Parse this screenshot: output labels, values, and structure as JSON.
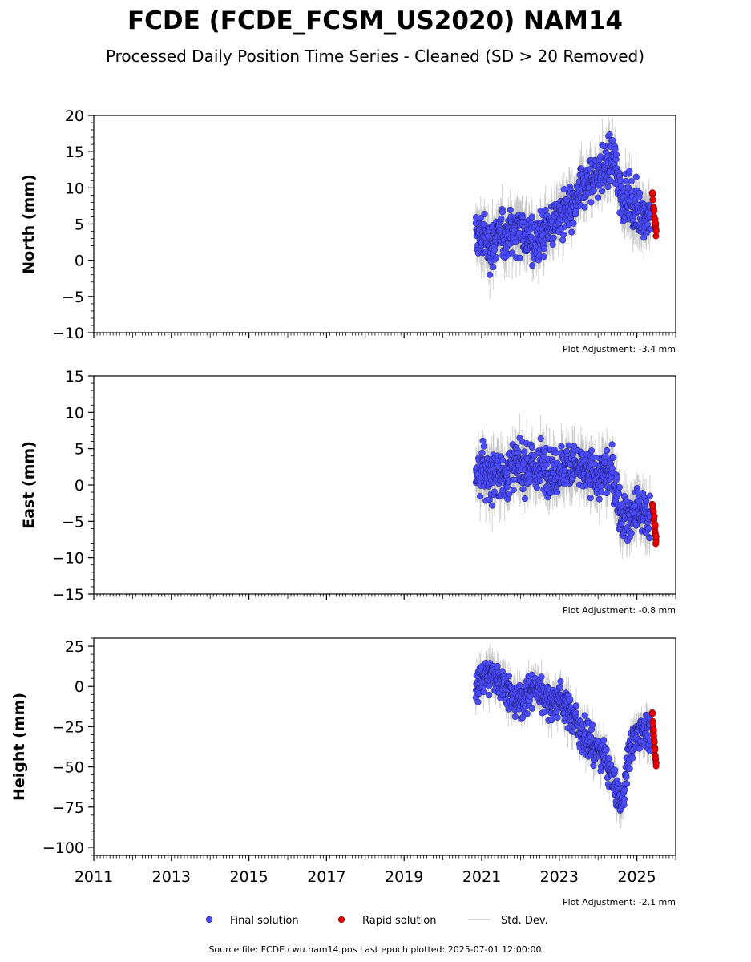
{
  "title": "FCDE (FCDE_FCSM_US2020) NAM14",
  "subtitle": "Processed Daily Position Time Series - Cleaned (SD > 20 Removed)",
  "footer": "Source file: FCDE.cwu.nam14.pos  Last epoch plotted: 2025-07-01 12:00:00",
  "legend": {
    "final": "Final solution",
    "rapid": "Rapid solution",
    "std": "Std. Dev."
  },
  "colors": {
    "final": "#4b4bff",
    "rapid": "#ee0000",
    "std": "#bdbdbd"
  },
  "chart_data": [
    {
      "type": "scatter",
      "ylabel": "North (mm)",
      "ylim": [
        -10,
        20
      ],
      "yticks": [
        20,
        15,
        10,
        5,
        0,
        -5,
        -10
      ],
      "xlim": [
        2011,
        2026
      ],
      "adjustment": "Plot Adjustment: -3.4 mm",
      "series": [
        {
          "name": "Final solution",
          "x": [
            2020.85,
            2021.0,
            2021.2,
            2021.4,
            2021.6,
            2021.8,
            2022.0,
            2022.2,
            2022.4,
            2022.6,
            2022.8,
            2023.0,
            2023.2,
            2023.4,
            2023.6,
            2023.8,
            2024.0,
            2024.2,
            2024.4,
            2024.6,
            2024.8,
            2025.0,
            2025.2,
            2025.35
          ],
          "y": [
            3,
            3.5,
            2,
            3,
            3.5,
            4,
            5,
            3,
            2.5,
            4,
            5,
            6,
            6.5,
            7,
            10,
            11,
            12,
            13,
            14,
            9,
            8,
            7,
            6.5,
            6
          ]
        },
        {
          "name": "Rapid solution",
          "x": [
            2025.4,
            2025.45,
            2025.5
          ],
          "y": [
            9,
            6,
            4
          ]
        }
      ],
      "std_dev": 2.5
    },
    {
      "type": "scatter",
      "ylabel": "East (mm)",
      "ylim": [
        -15,
        15
      ],
      "yticks": [
        15,
        10,
        5,
        0,
        -5,
        -10,
        -15
      ],
      "xlim": [
        2011,
        2026
      ],
      "adjustment": "Plot Adjustment: -0.8 mm",
      "series": [
        {
          "name": "Final solution",
          "x": [
            2020.85,
            2021.0,
            2021.2,
            2021.4,
            2021.6,
            2021.8,
            2022.0,
            2022.2,
            2022.4,
            2022.6,
            2022.8,
            2023.0,
            2023.2,
            2023.4,
            2023.6,
            2023.8,
            2024.0,
            2024.2,
            2024.4,
            2024.6,
            2024.8,
            2025.0,
            2025.2,
            2025.35
          ],
          "y": [
            1,
            2,
            1.5,
            2,
            1,
            3,
            2,
            2.5,
            2,
            3,
            1.5,
            2,
            3,
            2.5,
            2,
            1.5,
            1,
            2,
            1,
            -4,
            -4.5,
            -3.5,
            -4,
            -4.5
          ]
        },
        {
          "name": "Rapid solution",
          "x": [
            2025.4,
            2025.45,
            2025.5
          ],
          "y": [
            -3,
            -5,
            -8
          ]
        }
      ],
      "std_dev": 2.5
    },
    {
      "type": "scatter",
      "ylabel": "Height (mm)",
      "ylim": [
        -105,
        30
      ],
      "yticks": [
        25,
        0,
        -25,
        -50,
        -75,
        -100
      ],
      "xlim": [
        2011,
        2026
      ],
      "xticks": [
        "2011",
        "2013",
        "2015",
        "2017",
        "2019",
        "2021",
        "2023",
        "2025"
      ],
      "adjustment": "Plot Adjustment: -2.1 mm",
      "series": [
        {
          "name": "Final solution",
          "x": [
            2020.85,
            2021.0,
            2021.2,
            2021.4,
            2021.6,
            2021.8,
            2022.0,
            2022.2,
            2022.4,
            2022.6,
            2022.8,
            2023.0,
            2023.2,
            2023.4,
            2023.6,
            2023.8,
            2024.0,
            2024.2,
            2024.4,
            2024.6,
            2024.8,
            2025.0,
            2025.2,
            2025.35
          ],
          "y": [
            0,
            5,
            8,
            5,
            2,
            -8,
            -10,
            -5,
            0,
            -5,
            -10,
            -8,
            -12,
            -20,
            -30,
            -35,
            -40,
            -45,
            -60,
            -75,
            -40,
            -30,
            -25,
            -30
          ]
        },
        {
          "name": "Rapid solution",
          "x": [
            2025.4,
            2025.45,
            2025.5
          ],
          "y": [
            -20,
            -35,
            -50
          ]
        }
      ],
      "std_dev": 8
    }
  ]
}
